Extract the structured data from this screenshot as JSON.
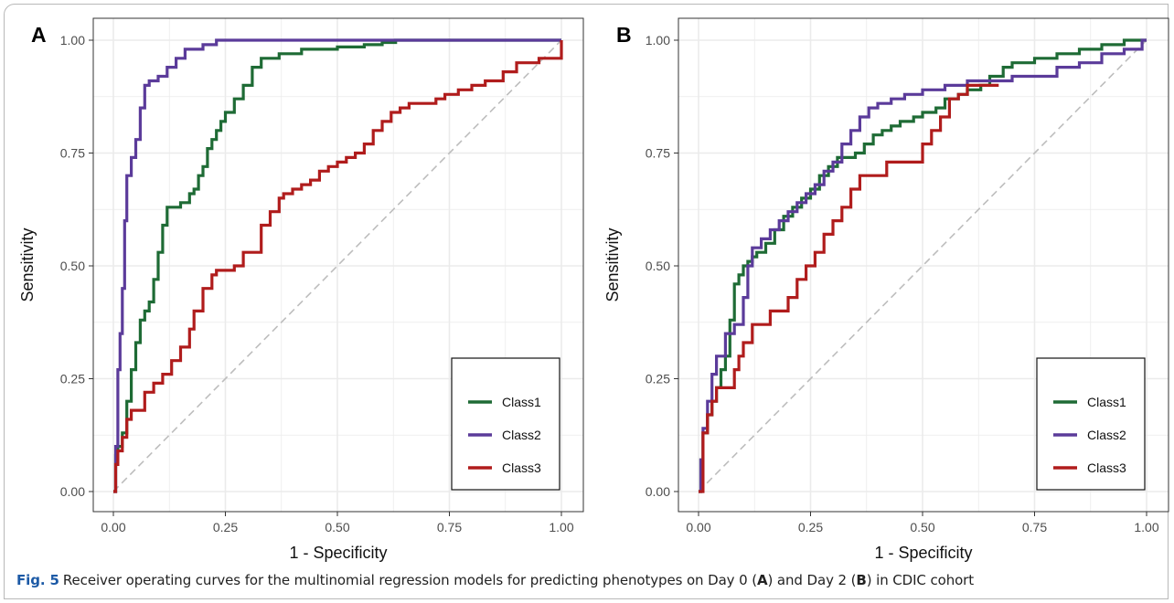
{
  "colors": {
    "Class1": "#1e6b35",
    "Class2": "#5b3b9a",
    "Class3": "#b01c1c",
    "diagonal": "#bdbdbd",
    "grid": "#ebebeb",
    "figlabel": "#1c5aa6"
  },
  "chart_data": [
    {
      "type": "line",
      "panel_label": "A",
      "xlabel": "1 - Specificity",
      "ylabel": "Sensitivity",
      "xlim": [
        0,
        1
      ],
      "ylim": [
        0,
        1
      ],
      "xticks": [
        "0.00",
        "0.25",
        "0.50",
        "0.75",
        "1.00"
      ],
      "yticks": [
        "0.00",
        "0.25",
        "0.50",
        "0.75",
        "1.00"
      ],
      "grid": true,
      "legend_position": "bottom-right",
      "reference_line": "diagonal",
      "series": [
        {
          "name": "Class1",
          "x": [
            0,
            0.005,
            0.01,
            0.02,
            0.03,
            0.04,
            0.05,
            0.06,
            0.07,
            0.08,
            0.09,
            0.1,
            0.11,
            0.12,
            0.13,
            0.14,
            0.15,
            0.16,
            0.17,
            0.18,
            0.19,
            0.2,
            0.21,
            0.22,
            0.23,
            0.24,
            0.25,
            0.27,
            0.29,
            0.31,
            0.33,
            0.37,
            0.42,
            0.5,
            0.56,
            0.6,
            0.63,
            1.0
          ],
          "y": [
            0,
            0.08,
            0.1,
            0.13,
            0.2,
            0.27,
            0.33,
            0.38,
            0.4,
            0.42,
            0.47,
            0.53,
            0.59,
            0.63,
            0.63,
            0.63,
            0.64,
            0.64,
            0.66,
            0.67,
            0.7,
            0.72,
            0.76,
            0.78,
            0.8,
            0.82,
            0.84,
            0.87,
            0.9,
            0.94,
            0.96,
            0.97,
            0.98,
            0.985,
            0.99,
            0.995,
            1.0,
            1.0
          ]
        },
        {
          "name": "Class2",
          "x": [
            0,
            0.005,
            0.01,
            0.015,
            0.02,
            0.025,
            0.03,
            0.04,
            0.05,
            0.06,
            0.07,
            0.08,
            0.09,
            0.1,
            0.12,
            0.14,
            0.16,
            0.2,
            0.23,
            1.0
          ],
          "y": [
            0,
            0.1,
            0.27,
            0.35,
            0.45,
            0.6,
            0.7,
            0.74,
            0.78,
            0.85,
            0.9,
            0.91,
            0.91,
            0.92,
            0.94,
            0.96,
            0.98,
            0.99,
            1.0,
            1.0
          ]
        },
        {
          "name": "Class3",
          "x": [
            0,
            0.005,
            0.01,
            0.02,
            0.03,
            0.04,
            0.05,
            0.07,
            0.09,
            0.11,
            0.13,
            0.15,
            0.17,
            0.18,
            0.2,
            0.22,
            0.23,
            0.25,
            0.27,
            0.29,
            0.31,
            0.33,
            0.35,
            0.37,
            0.38,
            0.4,
            0.42,
            0.44,
            0.46,
            0.48,
            0.5,
            0.52,
            0.54,
            0.56,
            0.58,
            0.6,
            0.62,
            0.64,
            0.66,
            0.7,
            0.72,
            0.74,
            0.77,
            0.8,
            0.83,
            0.87,
            0.9,
            0.95,
            1.0
          ],
          "y": [
            0,
            0.06,
            0.09,
            0.12,
            0.16,
            0.18,
            0.18,
            0.22,
            0.24,
            0.26,
            0.29,
            0.32,
            0.36,
            0.4,
            0.45,
            0.48,
            0.49,
            0.49,
            0.5,
            0.53,
            0.53,
            0.59,
            0.62,
            0.65,
            0.66,
            0.67,
            0.68,
            0.69,
            0.71,
            0.72,
            0.73,
            0.74,
            0.75,
            0.77,
            0.8,
            0.82,
            0.84,
            0.85,
            0.86,
            0.86,
            0.87,
            0.88,
            0.89,
            0.9,
            0.91,
            0.93,
            0.95,
            0.96,
            1.0
          ]
        }
      ]
    },
    {
      "type": "line",
      "panel_label": "B",
      "xlabel": "1 - Specificity",
      "ylabel": "Sensitivity",
      "xlim": [
        0,
        1
      ],
      "ylim": [
        0,
        1
      ],
      "xticks": [
        "0.00",
        "0.25",
        "0.50",
        "0.75",
        "1.00"
      ],
      "yticks": [
        "0.00",
        "0.25",
        "0.50",
        "0.75",
        "1.00"
      ],
      "grid": true,
      "legend_position": "bottom-right",
      "reference_line": "diagonal",
      "series": [
        {
          "name": "Class1",
          "x": [
            0,
            0.005,
            0.01,
            0.02,
            0.03,
            0.04,
            0.05,
            0.06,
            0.07,
            0.08,
            0.09,
            0.1,
            0.11,
            0.12,
            0.13,
            0.15,
            0.17,
            0.19,
            0.21,
            0.23,
            0.25,
            0.27,
            0.29,
            0.31,
            0.33,
            0.35,
            0.37,
            0.39,
            0.41,
            0.43,
            0.45,
            0.48,
            0.5,
            0.53,
            0.55,
            0.58,
            0.6,
            0.63,
            0.65,
            0.68,
            0.7,
            0.75,
            0.8,
            0.85,
            0.9,
            0.95,
            1.0
          ],
          "y": [
            0,
            0.07,
            0.13,
            0.17,
            0.2,
            0.23,
            0.27,
            0.3,
            0.38,
            0.46,
            0.48,
            0.5,
            0.51,
            0.52,
            0.53,
            0.55,
            0.58,
            0.61,
            0.63,
            0.65,
            0.67,
            0.7,
            0.72,
            0.74,
            0.74,
            0.75,
            0.77,
            0.79,
            0.8,
            0.81,
            0.82,
            0.83,
            0.84,
            0.85,
            0.87,
            0.88,
            0.89,
            0.9,
            0.92,
            0.94,
            0.95,
            0.96,
            0.97,
            0.98,
            0.99,
            1.0,
            1.0
          ]
        },
        {
          "name": "Class2",
          "x": [
            0,
            0.005,
            0.01,
            0.02,
            0.03,
            0.04,
            0.06,
            0.08,
            0.1,
            0.11,
            0.12,
            0.14,
            0.16,
            0.18,
            0.2,
            0.22,
            0.24,
            0.26,
            0.28,
            0.3,
            0.32,
            0.34,
            0.36,
            0.38,
            0.4,
            0.43,
            0.46,
            0.5,
            0.55,
            0.6,
            0.65,
            0.7,
            0.75,
            0.8,
            0.85,
            0.9,
            0.95,
            0.99,
            1.0
          ],
          "y": [
            0,
            0.07,
            0.14,
            0.2,
            0.26,
            0.3,
            0.35,
            0.37,
            0.43,
            0.5,
            0.54,
            0.56,
            0.58,
            0.6,
            0.62,
            0.64,
            0.66,
            0.68,
            0.71,
            0.73,
            0.77,
            0.8,
            0.83,
            0.85,
            0.86,
            0.87,
            0.88,
            0.89,
            0.9,
            0.91,
            0.91,
            0.92,
            0.92,
            0.94,
            0.95,
            0.97,
            0.98,
            1.0,
            1.0
          ]
        },
        {
          "name": "Class3",
          "x": [
            0,
            0.01,
            0.02,
            0.03,
            0.04,
            0.06,
            0.08,
            0.09,
            0.1,
            0.12,
            0.14,
            0.16,
            0.2,
            0.22,
            0.24,
            0.26,
            0.28,
            0.3,
            0.32,
            0.34,
            0.36,
            0.38,
            0.4,
            0.42,
            0.44,
            0.46,
            0.48,
            0.5,
            0.52,
            0.54,
            0.56,
            0.58,
            0.6,
            0.62,
            0.64,
            0.67
          ],
          "y": [
            0,
            0.13,
            0.17,
            0.2,
            0.23,
            0.23,
            0.27,
            0.3,
            0.33,
            0.37,
            0.37,
            0.4,
            0.43,
            0.47,
            0.5,
            0.53,
            0.57,
            0.6,
            0.63,
            0.67,
            0.7,
            0.7,
            0.7,
            0.73,
            0.73,
            0.73,
            0.73,
            0.77,
            0.8,
            0.83,
            0.87,
            0.88,
            0.9,
            0.9,
            0.9,
            0.9
          ]
        }
      ]
    }
  ],
  "caption": {
    "fig_label": "Fig. 5",
    "text_1": "Receiver operating curves for the multinomial regression models for predicting phenotypes on Day 0 (",
    "bold_1": "A",
    "text_2": ") and Day 2 (",
    "bold_2": "B",
    "text_3": ") in CDIC cohort"
  }
}
